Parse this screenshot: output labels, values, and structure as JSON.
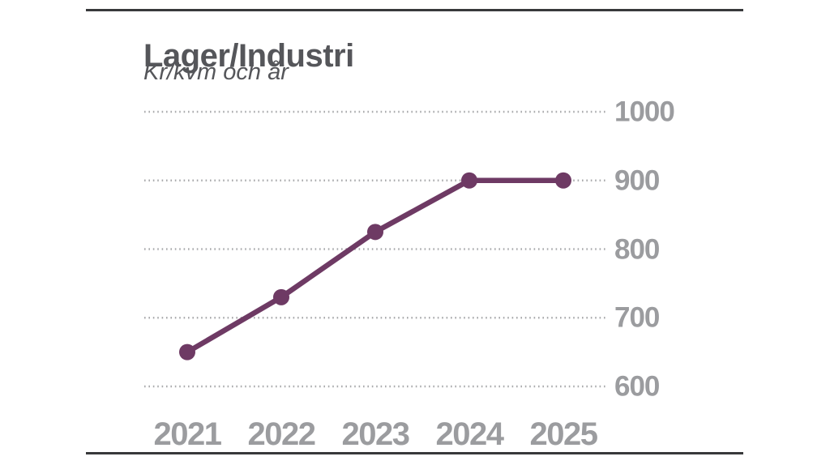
{
  "chart_data": {
    "type": "line",
    "title": "Lager/Industri",
    "subtitle": "Kr/kvm och år",
    "categories": [
      "2021",
      "2022",
      "2023",
      "2024",
      "2025"
    ],
    "values": [
      650,
      730,
      825,
      900,
      900
    ],
    "series": [
      {
        "name": "Lager/Industri",
        "values": [
          650,
          730,
          825,
          900,
          900
        ]
      }
    ],
    "xlabel": "",
    "ylabel": "Kr/kvm och år",
    "y_axis": {
      "ticks": [
        1000,
        900,
        800,
        700,
        600
      ],
      "range": [
        600,
        1000
      ],
      "label_side": "right"
    },
    "grid": {
      "horizontal": true,
      "vertical": false,
      "style": "dotted"
    },
    "legend_position": "none",
    "marker": "circle",
    "colors": {
      "line": "#6e3a64",
      "grid": "#aaabad",
      "title": "#55565a",
      "tick_label": "#9b9c9f",
      "rule": "#38393b"
    }
  }
}
